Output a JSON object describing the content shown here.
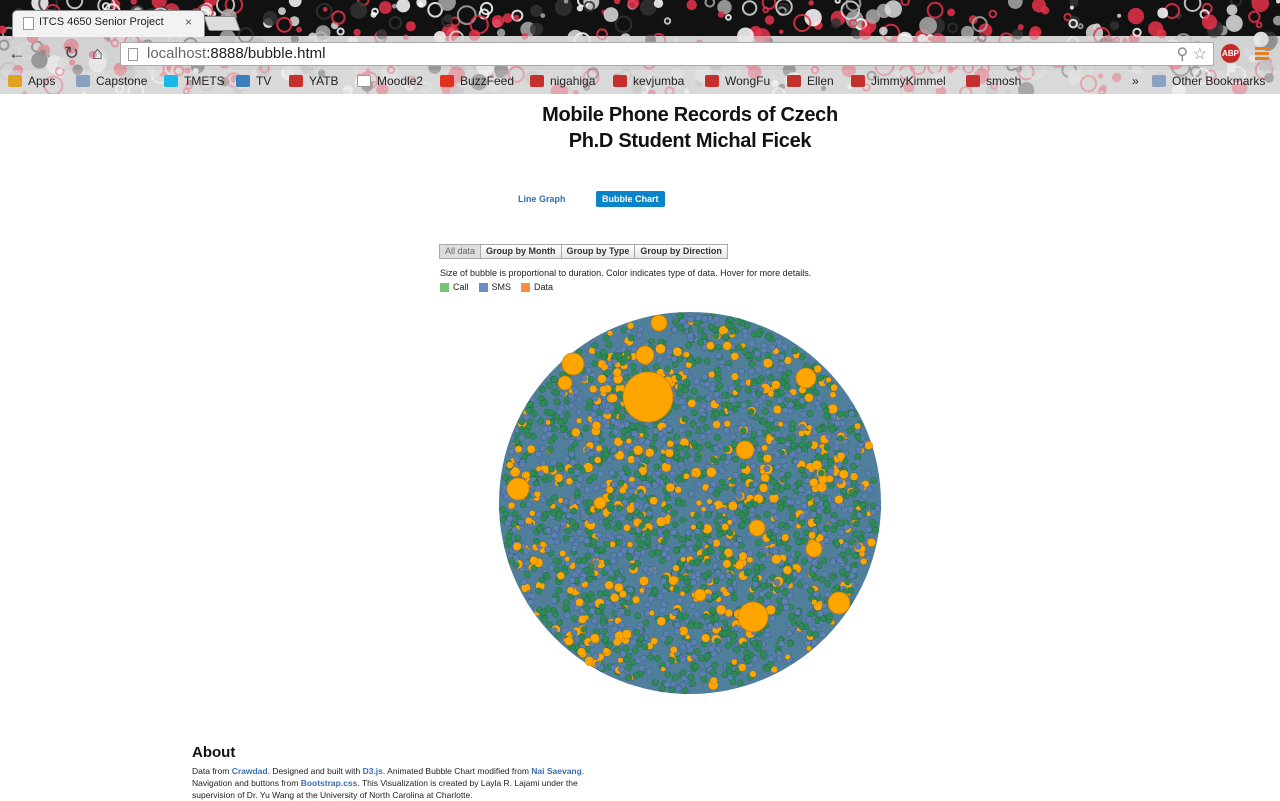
{
  "browser": {
    "tab_title": "ITCS 4650 Senior Project",
    "tab_close": "×",
    "url_host": "localhost",
    "url_rest": ":8888/bubble.html",
    "abp_label": "ABP",
    "bookmarks": [
      {
        "label": "Apps",
        "icon": "apps-grid-icon",
        "color": "#e0a020"
      },
      {
        "label": "Capstone",
        "icon": "folder-icon",
        "color": "#8aa0c0"
      },
      {
        "label": "TMETS",
        "icon": "vimeo-icon",
        "color": "#1ab7ea"
      },
      {
        "label": "TV",
        "icon": "signal-icon",
        "color": "#3a7fc0"
      },
      {
        "label": "YATB",
        "icon": "youtube-icon",
        "color": "#c4302b"
      },
      {
        "label": "Moodle2",
        "icon": "page-icon",
        "color": "#ffffff"
      },
      {
        "label": "BuzzFeed",
        "icon": "buzzfeed-icon",
        "color": "#e0301e"
      },
      {
        "label": "nigahiga",
        "icon": "youtube-icon",
        "color": "#c4302b"
      },
      {
        "label": "kevjumba",
        "icon": "youtube-icon",
        "color": "#c4302b"
      },
      {
        "label": "WongFu",
        "icon": "youtube-icon",
        "color": "#c4302b"
      },
      {
        "label": "Ellen",
        "icon": "youtube-icon",
        "color": "#c4302b"
      },
      {
        "label": "JimmyKimmel",
        "icon": "youtube-icon",
        "color": "#c4302b"
      },
      {
        "label": "smosh",
        "icon": "youtube-icon",
        "color": "#c4302b"
      }
    ],
    "overflow": "»",
    "other_bookmarks": "Other Bookmarks"
  },
  "page": {
    "title_line1": "Mobile Phone Records of Czech",
    "title_line2": "Ph.D Student Michal Ficek",
    "nav": {
      "line_graph": "Line Graph",
      "bubble_chart": "Bubble Chart"
    },
    "group_buttons": [
      "All data",
      "Group by Month",
      "Group by Type",
      "Group by Direction"
    ],
    "caption": "Size of bubble is proportional to duration. Color indicates type of data. Hover for more details.",
    "legend": [
      {
        "label": "Call",
        "color": "#74c476"
      },
      {
        "label": "SMS",
        "color": "#6b8fc4"
      },
      {
        "label": "Data",
        "color": "#fd8d3c"
      }
    ],
    "about": {
      "heading": "About",
      "t1": "Data from ",
      "l1": "Crawdad",
      "t2": ". Designed and built with ",
      "l2": "D3.js",
      "t3": ". Animated Bubble Chart modified from ",
      "l3": "Nai Saevang",
      "t4": ". Navigation and buttons from ",
      "l4": "Bootstrap.css",
      "t5": ". This Visualization is created by Layla R. Lajami under the supervision of Dr. Yu Wang at the University of North Carolina at Charlotte."
    }
  },
  "bubble_colors": {
    "call": "#2e8b57",
    "sms": "#5b80b2",
    "data": "#ffa500"
  }
}
